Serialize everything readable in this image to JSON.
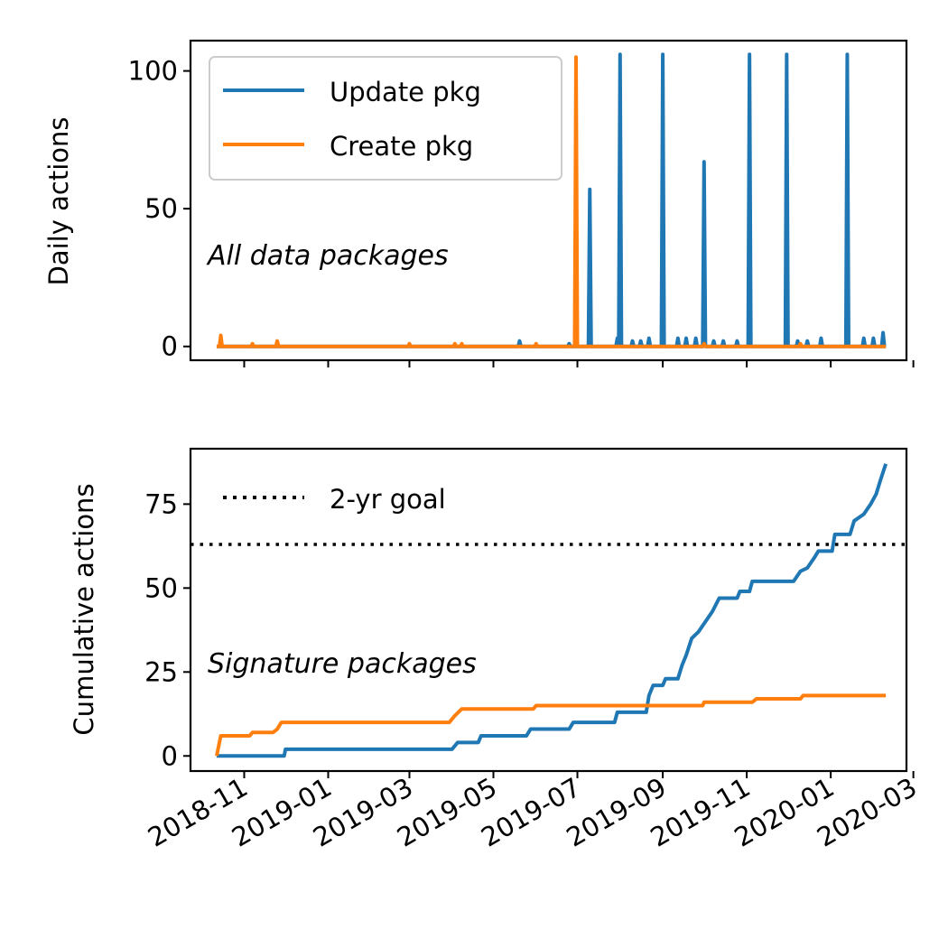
{
  "chart_data": [
    {
      "type": "line",
      "title": "",
      "ylabel": "Daily actions",
      "xlabel": "",
      "annotation": "All data packages",
      "ylim": [
        -5,
        111
      ],
      "y_ticks": [
        0,
        50,
        100
      ],
      "y_tick_labels": [
        "0",
        "50",
        "100"
      ],
      "x_range": [
        "2018-09-23",
        "2020-02-25"
      ],
      "x_ticks": [
        "2018-11-01",
        "2019-01-01",
        "2019-03-01",
        "2019-05-01",
        "2019-07-01",
        "2019-09-01",
        "2019-11-01",
        "2020-01-01",
        "2020-03-01"
      ],
      "x_tick_labels_shown": false,
      "legend": {
        "placement": "top-left",
        "entries": [
          "Update pkg",
          "Create pkg"
        ]
      },
      "series": [
        {
          "name": "Update pkg",
          "color": "#1f77b4",
          "baseline": 0,
          "start": "2018-10-12",
          "end": "2020-02-10",
          "spikes": [
            {
              "date": "2019-05-20",
              "value": 2
            },
            {
              "date": "2019-06-25",
              "value": 1
            },
            {
              "date": "2019-07-10",
              "value": 57
            },
            {
              "date": "2019-07-30",
              "value": 3
            },
            {
              "date": "2019-08-01",
              "value": 106
            },
            {
              "date": "2019-08-10",
              "value": 2
            },
            {
              "date": "2019-08-16",
              "value": 2
            },
            {
              "date": "2019-08-22",
              "value": 3
            },
            {
              "date": "2019-09-01",
              "value": 106
            },
            {
              "date": "2019-09-12",
              "value": 3
            },
            {
              "date": "2019-09-18",
              "value": 3
            },
            {
              "date": "2019-09-25",
              "value": 3
            },
            {
              "date": "2019-10-01",
              "value": 67
            },
            {
              "date": "2019-10-08",
              "value": 2
            },
            {
              "date": "2019-10-15",
              "value": 2
            },
            {
              "date": "2019-10-25",
              "value": 2
            },
            {
              "date": "2019-11-03",
              "value": 106
            },
            {
              "date": "2019-11-30",
              "value": 106
            },
            {
              "date": "2019-12-08",
              "value": 2
            },
            {
              "date": "2019-12-15",
              "value": 2
            },
            {
              "date": "2019-12-25",
              "value": 3
            },
            {
              "date": "2020-01-13",
              "value": 106
            },
            {
              "date": "2020-01-25",
              "value": 3
            },
            {
              "date": "2020-02-01",
              "value": 3
            },
            {
              "date": "2020-02-08",
              "value": 5
            }
          ]
        },
        {
          "name": "Create pkg",
          "color": "#ff7f0e",
          "baseline": 0,
          "start": "2018-10-12",
          "end": "2020-02-10",
          "spikes": [
            {
              "date": "2018-10-15",
              "value": 4
            },
            {
              "date": "2018-11-07",
              "value": 1
            },
            {
              "date": "2018-11-25",
              "value": 2
            },
            {
              "date": "2019-03-01",
              "value": 1
            },
            {
              "date": "2019-04-03",
              "value": 1
            },
            {
              "date": "2019-04-08",
              "value": 1
            },
            {
              "date": "2019-06-01",
              "value": 1
            },
            {
              "date": "2019-06-30",
              "value": 105
            },
            {
              "date": "2019-10-01",
              "value": 1
            },
            {
              "date": "2019-12-10",
              "value": 1
            }
          ]
        }
      ]
    },
    {
      "type": "line",
      "title": "",
      "ylabel": "Cumulative actions",
      "xlabel": "",
      "annotation": "Signature packages",
      "ylim": [
        -4.5,
        91.5
      ],
      "y_ticks": [
        0,
        25,
        50,
        75
      ],
      "y_tick_labels": [
        "0",
        "25",
        "50",
        "75"
      ],
      "x_range": [
        "2018-09-23",
        "2020-02-25"
      ],
      "x_ticks": [
        "2018-11-01",
        "2019-01-01",
        "2019-03-01",
        "2019-05-01",
        "2019-07-01",
        "2019-09-01",
        "2019-11-01",
        "2020-01-01",
        "2020-03-01"
      ],
      "x_tick_labels": [
        "2018-11",
        "2019-01",
        "2019-03",
        "2019-05",
        "2019-07",
        "2019-09",
        "2019-11",
        "2020-01",
        "2020-03"
      ],
      "legend": {
        "placement": "top-left",
        "entries": [
          "2-yr goal"
        ]
      },
      "reference_lines": [
        {
          "name": "2-yr goal",
          "value": 63,
          "style": "dotted",
          "color": "#000000"
        }
      ],
      "series": [
        {
          "name": "Update pkg",
          "color": "#1f77b4",
          "points": [
            [
              "2018-10-12",
              0
            ],
            [
              "2018-11-30",
              0
            ],
            [
              "2018-12-01",
              2
            ],
            [
              "2019-04-01",
              2
            ],
            [
              "2019-04-05",
              4
            ],
            [
              "2019-04-20",
              4
            ],
            [
              "2019-04-22",
              6
            ],
            [
              "2019-05-25",
              6
            ],
            [
              "2019-05-28",
              8
            ],
            [
              "2019-06-25",
              8
            ],
            [
              "2019-06-28",
              10
            ],
            [
              "2019-07-28",
              10
            ],
            [
              "2019-07-30",
              13
            ],
            [
              "2019-08-20",
              13
            ],
            [
              "2019-08-22",
              18
            ],
            [
              "2019-08-25",
              21
            ],
            [
              "2019-09-01",
              21
            ],
            [
              "2019-09-03",
              23
            ],
            [
              "2019-09-12",
              23
            ],
            [
              "2019-09-15",
              27
            ],
            [
              "2019-09-18",
              30
            ],
            [
              "2019-09-22",
              35
            ],
            [
              "2019-09-27",
              37
            ],
            [
              "2019-10-02",
              40
            ],
            [
              "2019-10-07",
              43
            ],
            [
              "2019-10-12",
              47
            ],
            [
              "2019-10-25",
              47
            ],
            [
              "2019-10-27",
              49
            ],
            [
              "2019-11-03",
              49
            ],
            [
              "2019-11-05",
              52
            ],
            [
              "2019-12-05",
              52
            ],
            [
              "2019-12-10",
              55
            ],
            [
              "2019-12-15",
              56
            ],
            [
              "2019-12-20",
              59
            ],
            [
              "2019-12-23",
              61
            ],
            [
              "2020-01-02",
              61
            ],
            [
              "2020-01-04",
              66
            ],
            [
              "2020-01-15",
              66
            ],
            [
              "2020-01-18",
              70
            ],
            [
              "2020-01-25",
              72
            ],
            [
              "2020-01-30",
              75
            ],
            [
              "2020-02-03",
              78
            ],
            [
              "2020-02-06",
              82
            ],
            [
              "2020-02-10",
              87
            ]
          ]
        },
        {
          "name": "Create pkg",
          "color": "#ff7f0e",
          "points": [
            [
              "2018-10-12",
              0
            ],
            [
              "2018-10-15",
              6
            ],
            [
              "2018-11-05",
              6
            ],
            [
              "2018-11-07",
              7
            ],
            [
              "2018-11-22",
              7
            ],
            [
              "2018-11-25",
              8
            ],
            [
              "2018-11-28",
              10
            ],
            [
              "2019-03-30",
              10
            ],
            [
              "2019-04-03",
              12
            ],
            [
              "2019-04-08",
              14
            ],
            [
              "2019-05-30",
              14
            ],
            [
              "2019-06-01",
              15
            ],
            [
              "2019-09-30",
              15
            ],
            [
              "2019-10-01",
              16
            ],
            [
              "2019-11-05",
              16
            ],
            [
              "2019-11-08",
              17
            ],
            [
              "2019-12-10",
              17
            ],
            [
              "2019-12-12",
              18
            ],
            [
              "2020-02-10",
              18
            ]
          ]
        }
      ]
    }
  ]
}
